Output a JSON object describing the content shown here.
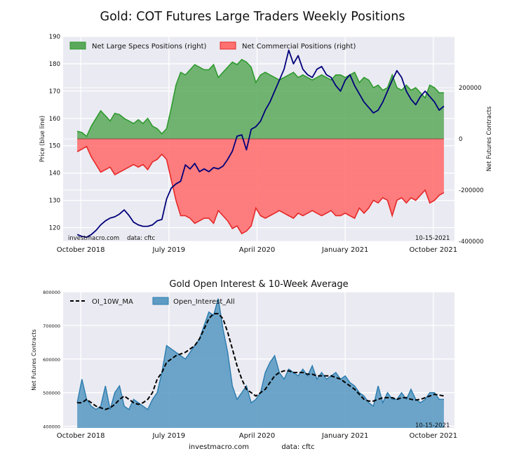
{
  "chart_data": [
    {
      "type": "area",
      "title": "Gold: COT Futures Large Traders Weekly Positions",
      "ylabel_left": "Price (blue line)",
      "ylabel_right": "Net Futures Contracts",
      "ylim_left": [
        115,
        190
      ],
      "ylim_right": [
        -400000,
        400000
      ],
      "xlim": [
        2018.6,
        2021.93
      ],
      "x_ticks": [
        {
          "x": 2018.75,
          "label": "October 2018"
        },
        {
          "x": 2019.5,
          "label": "July 2019"
        },
        {
          "x": 2020.25,
          "label": "April 2020"
        },
        {
          "x": 2021.0,
          "label": "January 2021"
        },
        {
          "x": 2021.75,
          "label": "October 2021"
        }
      ],
      "y_ticks_left": [
        {
          "v": 120,
          "label": "120"
        },
        {
          "v": 130,
          "label": "130"
        },
        {
          "v": 140,
          "label": "140"
        },
        {
          "v": 150,
          "label": "150"
        },
        {
          "v": 160,
          "label": "160"
        },
        {
          "v": 170,
          "label": "170"
        },
        {
          "v": 180,
          "label": "180"
        },
        {
          "v": 190,
          "label": "190"
        }
      ],
      "y_ticks_right": [
        {
          "v": 200000,
          "label": "200000"
        },
        {
          "v": 0,
          "label": "0"
        },
        {
          "v": -200000,
          "label": "-200000"
        },
        {
          "v": -400000,
          "label": "-400000"
        }
      ],
      "legend": [
        "Net Large Specs Positions (right)",
        "Net Commercial Positions (right)"
      ],
      "watermark": "investmacro.com",
      "source": "data: cftc",
      "date": "10-15-2021",
      "colors": {
        "specs_fill": "#5aa95a",
        "specs_line": "#2e9a2e",
        "comm_fill": "#ff7070",
        "comm_line": "#e62828",
        "price": "#00007a",
        "plot_bg": "#eaeaf2"
      },
      "x": [
        2018.72,
        2018.76,
        2018.8,
        2018.84,
        2018.88,
        2018.92,
        2018.96,
        2019.0,
        2019.04,
        2019.08,
        2019.12,
        2019.16,
        2019.2,
        2019.24,
        2019.28,
        2019.32,
        2019.36,
        2019.4,
        2019.44,
        2019.48,
        2019.52,
        2019.56,
        2019.6,
        2019.64,
        2019.68,
        2019.72,
        2019.76,
        2019.8,
        2019.84,
        2019.88,
        2019.92,
        2019.96,
        2020.0,
        2020.04,
        2020.08,
        2020.12,
        2020.16,
        2020.2,
        2020.24,
        2020.28,
        2020.32,
        2020.36,
        2020.4,
        2020.44,
        2020.48,
        2020.52,
        2020.56,
        2020.6,
        2020.64,
        2020.68,
        2020.72,
        2020.76,
        2020.8,
        2020.84,
        2020.88,
        2020.92,
        2020.96,
        2021.0,
        2021.04,
        2021.08,
        2021.12,
        2021.16,
        2021.2,
        2021.24,
        2021.28,
        2021.32,
        2021.36,
        2021.4,
        2021.44,
        2021.48,
        2021.52,
        2021.56,
        2021.6,
        2021.64,
        2021.68,
        2021.72,
        2021.76,
        2021.8,
        2021.84
      ],
      "specs": [
        30000,
        25000,
        10000,
        50000,
        80000,
        110000,
        90000,
        70000,
        100000,
        95000,
        80000,
        70000,
        60000,
        75000,
        60000,
        80000,
        50000,
        40000,
        20000,
        40000,
        120000,
        210000,
        260000,
        250000,
        270000,
        290000,
        280000,
        270000,
        270000,
        290000,
        240000,
        260000,
        280000,
        300000,
        290000,
        310000,
        300000,
        280000,
        220000,
        250000,
        260000,
        250000,
        240000,
        230000,
        240000,
        250000,
        260000,
        240000,
        250000,
        240000,
        230000,
        240000,
        250000,
        240000,
        230000,
        250000,
        250000,
        240000,
        250000,
        260000,
        220000,
        240000,
        230000,
        200000,
        210000,
        190000,
        200000,
        250000,
        200000,
        190000,
        210000,
        190000,
        200000,
        180000,
        160000,
        210000,
        200000,
        180000,
        180000
      ],
      "comm": [
        -50000,
        -40000,
        -30000,
        -70000,
        -100000,
        -130000,
        -120000,
        -110000,
        -140000,
        -130000,
        -120000,
        -110000,
        -100000,
        -110000,
        -100000,
        -120000,
        -90000,
        -80000,
        -60000,
        -80000,
        -160000,
        -240000,
        -300000,
        -300000,
        -310000,
        -330000,
        -320000,
        -310000,
        -310000,
        -330000,
        -280000,
        -300000,
        -320000,
        -350000,
        -340000,
        -370000,
        -360000,
        -340000,
        -270000,
        -300000,
        -310000,
        -300000,
        -290000,
        -280000,
        -290000,
        -300000,
        -310000,
        -290000,
        -300000,
        -290000,
        -280000,
        -290000,
        -300000,
        -290000,
        -280000,
        -300000,
        -300000,
        -290000,
        -300000,
        -310000,
        -270000,
        -290000,
        -270000,
        -240000,
        -250000,
        -230000,
        -240000,
        -300000,
        -240000,
        -230000,
        -250000,
        -230000,
        -240000,
        -220000,
        -200000,
        -250000,
        -240000,
        -220000,
        -210000
      ],
      "price": [
        117.5,
        116.8,
        116.5,
        117.5,
        119.0,
        121.0,
        122.5,
        123.5,
        124.0,
        125.0,
        126.5,
        124.5,
        122.0,
        121.0,
        120.5,
        120.5,
        121.0,
        122.5,
        123.0,
        130.5,
        134.5,
        136.0,
        137.0,
        143.0,
        141.5,
        143.5,
        140.5,
        141.5,
        140.5,
        142.0,
        141.5,
        142.5,
        145.0,
        148.0,
        153.5,
        154.0,
        148.5,
        156.0,
        157.0,
        159.0,
        163.0,
        166.0,
        170.0,
        174.0,
        178.0,
        185.0,
        180.0,
        183.0,
        178.0,
        176.0,
        175.0,
        178.0,
        179.0,
        176.0,
        175.0,
        172.0,
        170.0,
        174.0,
        176.0,
        172.0,
        169.0,
        166.0,
        164.0,
        162.0,
        163.0,
        166.0,
        170.0,
        174.0,
        177.5,
        175.0,
        170.0,
        167.0,
        165.0,
        168.0,
        170.0,
        168.0,
        166.0,
        163.0,
        164.5
      ]
    },
    {
      "type": "area",
      "title": "Gold Open Interest & 10-Week Average",
      "ylabel": "Net Futures Contracts",
      "ylim": [
        395000,
        800000
      ],
      "xlim": [
        2018.6,
        2021.93
      ],
      "x_ticks": [
        {
          "x": 2018.75,
          "label": "October 2018"
        },
        {
          "x": 2019.5,
          "label": "July 2019"
        },
        {
          "x": 2020.25,
          "label": "April 2020"
        },
        {
          "x": 2021.0,
          "label": "January 2021"
        },
        {
          "x": 2021.75,
          "label": "October 2021"
        }
      ],
      "y_ticks": [
        {
          "v": 400000,
          "label": "400000"
        },
        {
          "v": 500000,
          "label": "500000"
        },
        {
          "v": 600000,
          "label": "600000"
        },
        {
          "v": 700000,
          "label": "700000"
        },
        {
          "v": 800000,
          "label": "800000"
        }
      ],
      "legend": [
        "OI_10W_MA",
        "Open_Interest_All"
      ],
      "date": "10-15-2021",
      "colors": {
        "oi_fill": "#5e9cc4",
        "oi_line": "#2a7bad",
        "ma_line": "#000000"
      },
      "x": [
        2018.72,
        2018.76,
        2018.8,
        2018.84,
        2018.88,
        2018.92,
        2018.96,
        2019.0,
        2019.04,
        2019.08,
        2019.12,
        2019.16,
        2019.2,
        2019.24,
        2019.28,
        2019.32,
        2019.36,
        2019.4,
        2019.44,
        2019.48,
        2019.52,
        2019.56,
        2019.6,
        2019.64,
        2019.68,
        2019.72,
        2019.76,
        2019.8,
        2019.84,
        2019.88,
        2019.92,
        2019.96,
        2020.0,
        2020.04,
        2020.08,
        2020.12,
        2020.16,
        2020.2,
        2020.24,
        2020.28,
        2020.32,
        2020.36,
        2020.4,
        2020.44,
        2020.48,
        2020.52,
        2020.56,
        2020.6,
        2020.64,
        2020.68,
        2020.72,
        2020.76,
        2020.8,
        2020.84,
        2020.88,
        2020.92,
        2020.96,
        2021.0,
        2021.04,
        2021.08,
        2021.12,
        2021.16,
        2021.2,
        2021.24,
        2021.28,
        2021.32,
        2021.36,
        2021.4,
        2021.44,
        2021.48,
        2021.52,
        2021.56,
        2021.6,
        2021.64,
        2021.68,
        2021.72,
        2021.76,
        2021.8,
        2021.84
      ],
      "oi": [
        470000,
        540000,
        480000,
        460000,
        450000,
        460000,
        520000,
        450000,
        500000,
        520000,
        460000,
        450000,
        480000,
        470000,
        460000,
        450000,
        480000,
        500000,
        560000,
        640000,
        630000,
        620000,
        610000,
        600000,
        620000,
        640000,
        660000,
        700000,
        740000,
        730000,
        780000,
        690000,
        620000,
        520000,
        480000,
        500000,
        520000,
        470000,
        480000,
        500000,
        560000,
        590000,
        610000,
        560000,
        540000,
        570000,
        560000,
        550000,
        570000,
        550000,
        580000,
        540000,
        560000,
        540000,
        550000,
        560000,
        540000,
        550000,
        530000,
        520000,
        500000,
        490000,
        470000,
        460000,
        520000,
        470000,
        500000,
        480000,
        480000,
        500000,
        480000,
        510000,
        480000,
        470000,
        480000,
        500000,
        500000,
        480000,
        480000
      ],
      "ma": [
        470000,
        470000,
        480000,
        470000,
        460000,
        455000,
        450000,
        455000,
        465000,
        480000,
        490000,
        480000,
        470000,
        465000,
        470000,
        480000,
        500000,
        540000,
        560000,
        590000,
        600000,
        610000,
        615000,
        620000,
        630000,
        640000,
        660000,
        690000,
        720000,
        735000,
        735000,
        720000,
        680000,
        630000,
        580000,
        540000,
        510000,
        500000,
        490000,
        500000,
        510000,
        530000,
        550000,
        560000,
        565000,
        565000,
        560000,
        560000,
        560000,
        555000,
        555000,
        550000,
        550000,
        550000,
        550000,
        545000,
        540000,
        530000,
        520000,
        510000,
        495000,
        480000,
        475000,
        475000,
        480000,
        485000,
        485000,
        485000,
        480000,
        485000,
        485000,
        480000,
        478000,
        480000,
        485000,
        490000,
        495000,
        493000,
        490000
      ],
      "footer": {
        "site": "investmacro.com",
        "source": "data: cftc"
      }
    }
  ]
}
